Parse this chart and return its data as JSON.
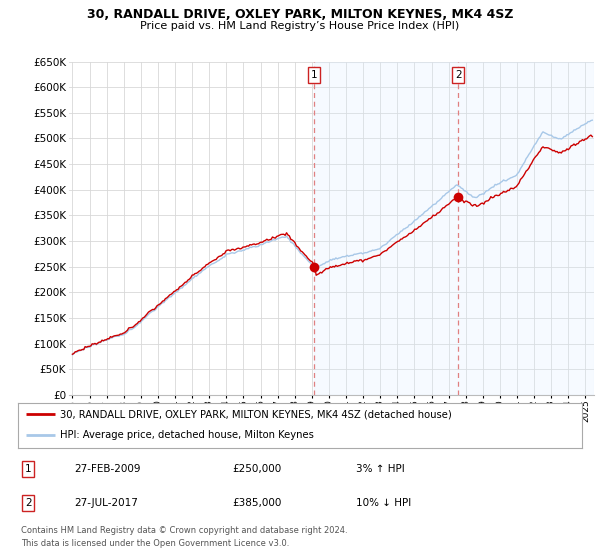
{
  "title": "30, RANDALL DRIVE, OXLEY PARK, MILTON KEYNES, MK4 4SZ",
  "subtitle": "Price paid vs. HM Land Registry’s House Price Index (HPI)",
  "ylim": [
    0,
    650000
  ],
  "yticks": [
    0,
    50000,
    100000,
    150000,
    200000,
    250000,
    300000,
    350000,
    400000,
    450000,
    500000,
    550000,
    600000,
    650000
  ],
  "xlim_start": 1994.8,
  "xlim_end": 2025.5,
  "sale1_year": 2009.15,
  "sale1_price": 250000,
  "sale2_year": 2017.56,
  "sale2_price": 385000,
  "hpi_color": "#a8c8e8",
  "property_color": "#cc0000",
  "vline_color": "#e08080",
  "shade_color": "#ddeeff",
  "legend_property": "30, RANDALL DRIVE, OXLEY PARK, MILTON KEYNES, MK4 4SZ (detached house)",
  "legend_hpi": "HPI: Average price, detached house, Milton Keynes",
  "footer1": "Contains HM Land Registry data © Crown copyright and database right 2024.",
  "footer2": "This data is licensed under the Open Government Licence v3.0.",
  "bg_color": "#ffffff",
  "grid_color": "#d8d8d8",
  "table_row1": [
    "1",
    "27-FEB-2009",
    "£250,000",
    "3% ↑ HPI"
  ],
  "table_row2": [
    "2",
    "27-JUL-2017",
    "£385,000",
    "10% ↓ HPI"
  ]
}
